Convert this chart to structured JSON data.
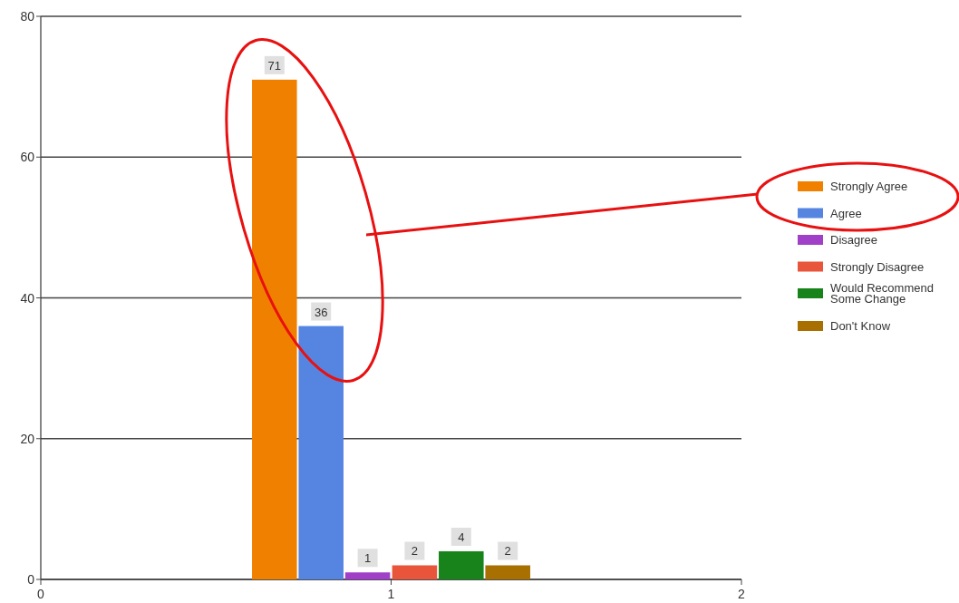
{
  "chart_data": {
    "type": "bar",
    "xlim": [
      0,
      2
    ],
    "xticks": [
      0,
      1,
      2
    ],
    "ylim": [
      0,
      80
    ],
    "yticks": [
      0,
      20,
      40,
      60,
      80
    ],
    "grid": "y",
    "legend": "right",
    "data_labels": true,
    "series": [
      {
        "name": "Strongly Agree",
        "color": "#f08000",
        "x": [
          0.667
        ],
        "values": [
          71
        ]
      },
      {
        "name": "Agree",
        "color": "#5585e0",
        "x": [
          0.8
        ],
        "values": [
          36
        ]
      },
      {
        "name": "Disagree",
        "color": "#a040c8",
        "x": [
          0.933
        ],
        "values": [
          1
        ]
      },
      {
        "name": "Strongly Disagree",
        "color": "#e8553a",
        "x": [
          1.067
        ],
        "values": [
          2
        ]
      },
      {
        "name": "Would Recommend Some Change",
        "color": "#17831a",
        "x": [
          1.2
        ],
        "values": [
          4
        ]
      },
      {
        "name": "Don't Know",
        "color": "#a87000",
        "x": [
          1.333
        ],
        "values": [
          2
        ]
      }
    ]
  }
}
